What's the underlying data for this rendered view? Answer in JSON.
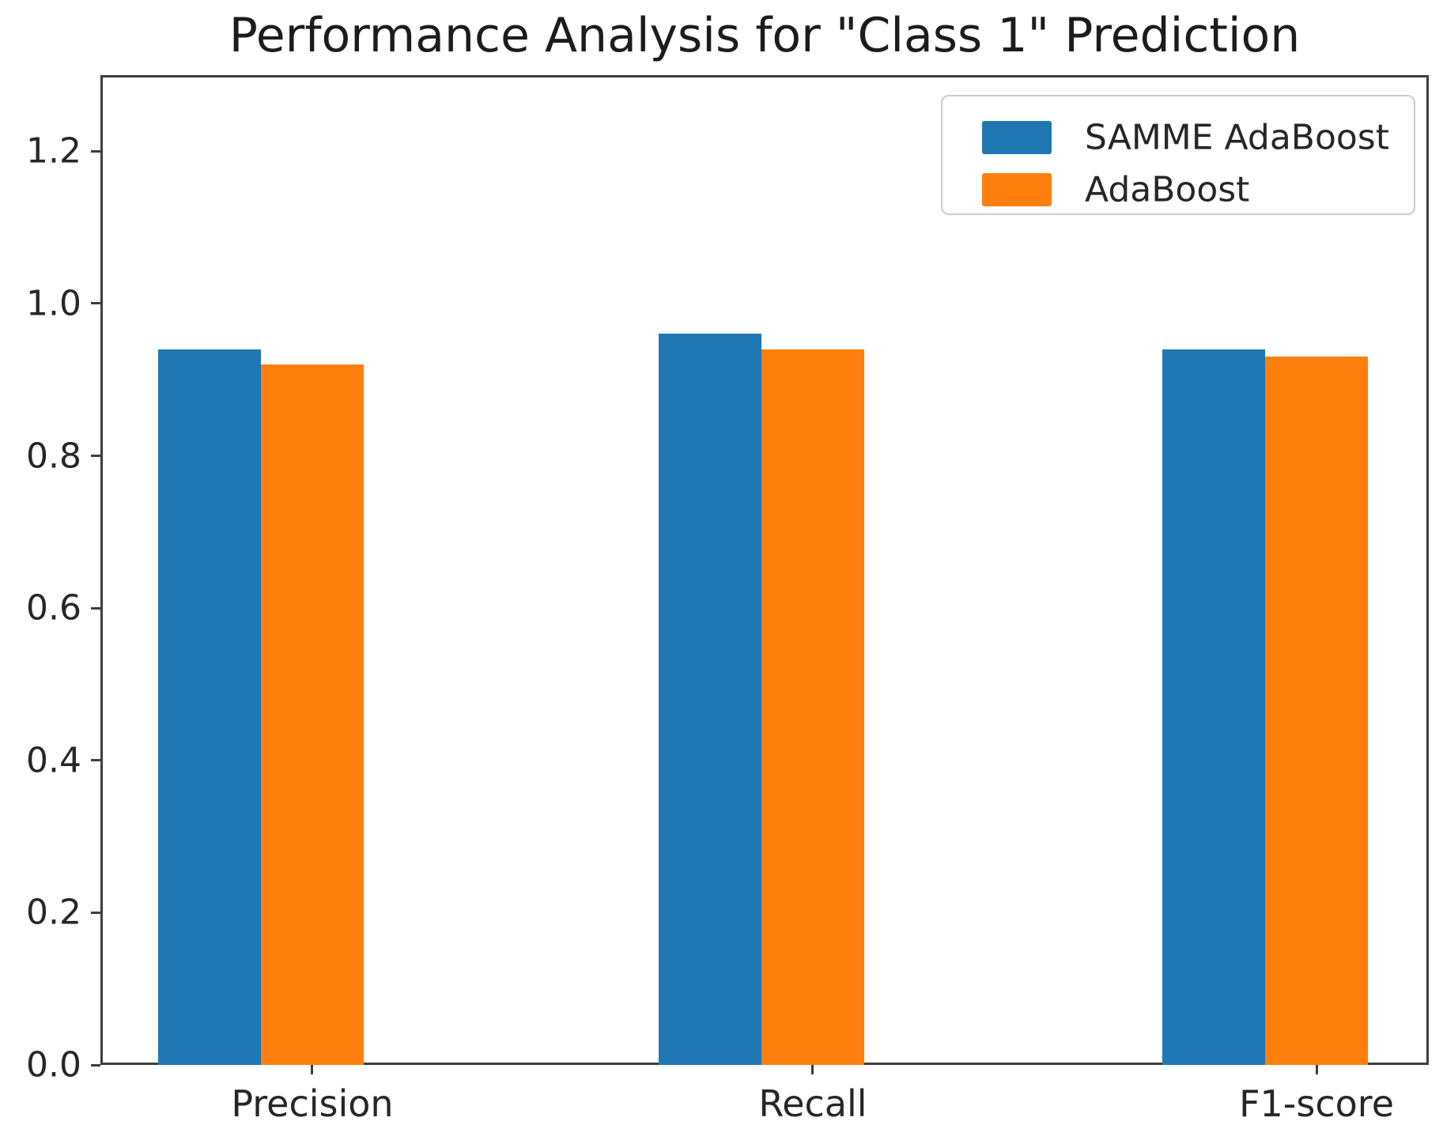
{
  "chart_data": {
    "type": "bar",
    "title": "Performance Analysis for \"Class 1\" Prediction",
    "categories": [
      "Precision",
      "Recall",
      "F1-score"
    ],
    "series": [
      {
        "name": "SAMME AdaBoost",
        "color": "#1f77b4",
        "values": [
          0.94,
          0.96,
          0.94
        ]
      },
      {
        "name": "AdaBoost",
        "color": "#ff7f0e",
        "values": [
          0.92,
          0.94,
          0.93
        ]
      }
    ],
    "xlabel": "",
    "ylabel": "",
    "ylim": [
      0,
      1.3
    ],
    "yticks": [
      0.0,
      0.2,
      0.4,
      0.6,
      0.8,
      1.0,
      1.2
    ],
    "ytick_labels": [
      "0.0",
      "0.2",
      "0.4",
      "0.6",
      "0.8",
      "1.0",
      "1.2"
    ],
    "grid": false,
    "legend_position": "upper right"
  }
}
